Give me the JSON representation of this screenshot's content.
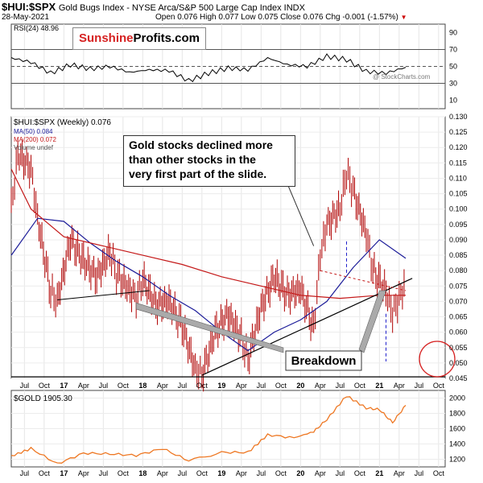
{
  "header": {
    "symbol": "$HUI:$SPX",
    "description": "Gold Bugs Index - NYSE Arca/S&P 500 Large Cap Index  INDX",
    "date": "28-May-2021",
    "ohlc": "Open 0.076  High 0.077  Low 0.075  Close 0.076  Chg -0.001 (-1.57%)",
    "ohlc_marker": "▼"
  },
  "logo": {
    "part1": "Sunshine",
    "part2": "Profits.com"
  },
  "watermark": "@ StockCharts.com",
  "annotations": {
    "note": "Gold stocks declined more\nthan other stocks in the\nvery first part of the slide.",
    "breakdown": "Breakdown"
  },
  "legend": {
    "rsi": "RSI(24) 48.96",
    "main_series": "$HUI:$SPX (Weekly) 0.076",
    "ma50": "MA(50) 0.084",
    "ma200": "MA(200) 0.072",
    "volume": "Volume undef",
    "gold": "$GOLD 1905.30"
  },
  "colors": {
    "candle": "#b00000",
    "ma50": "#1c1c99",
    "ma200": "#c41818",
    "gold": "#ee7722",
    "rsi": "#000000",
    "annotation_circle": "#d62222",
    "dashed": "#2222cc"
  },
  "chart_data": [
    {
      "type": "line",
      "title": "RSI(24)",
      "ylim": [
        0,
        100
      ],
      "yticks": [
        10,
        30,
        50,
        70,
        90
      ],
      "reference_lines": [
        30,
        50,
        70
      ],
      "x": [
        "2016-05",
        "2016-08",
        "2016-11",
        "2017-02",
        "2017-05",
        "2017-08",
        "2017-11",
        "2018-02",
        "2018-05",
        "2018-08",
        "2018-11",
        "2019-02",
        "2019-05",
        "2019-08",
        "2019-11",
        "2020-02",
        "2020-05",
        "2020-08",
        "2020-11",
        "2021-02",
        "2021-05"
      ],
      "values": [
        60,
        55,
        42,
        52,
        47,
        50,
        43,
        46,
        45,
        33,
        42,
        48,
        46,
        60,
        52,
        50,
        62,
        58,
        44,
        42,
        49
      ]
    },
    {
      "type": "line",
      "series_label": "$HUI:$SPX (Weekly)",
      "ylim": [
        0.045,
        0.13
      ],
      "yticks": [
        0.045,
        0.05,
        0.055,
        0.06,
        0.065,
        0.07,
        0.075,
        0.08,
        0.085,
        0.09,
        0.095,
        0.1,
        0.105,
        0.11,
        0.115,
        0.12,
        0.125,
        0.13
      ],
      "x_ticks": [
        "Jul",
        "Oct",
        "17",
        "Apr",
        "Jul",
        "Oct",
        "18",
        "Apr",
        "Jul",
        "Oct",
        "19",
        "Apr",
        "Jul",
        "Oct",
        "20",
        "Apr",
        "Jul",
        "Oct",
        "21",
        "Apr",
        "Jul",
        "Oct"
      ],
      "series": [
        {
          "name": "$HUI:$SPX",
          "x": [
            "2016-05",
            "2016-06",
            "2016-08",
            "2016-09",
            "2016-11",
            "2016-12",
            "2017-02",
            "2017-04",
            "2017-06",
            "2017-08",
            "2017-09",
            "2017-12",
            "2018-01",
            "2018-03",
            "2018-05",
            "2018-07",
            "2018-09",
            "2018-10",
            "2018-12",
            "2019-02",
            "2019-04",
            "2019-05",
            "2019-07",
            "2019-09",
            "2019-11",
            "2020-01",
            "2020-03",
            "2020-04",
            "2020-05",
            "2020-07",
            "2020-08",
            "2020-09",
            "2020-11",
            "2020-12",
            "2021-02",
            "2021-03",
            "2021-04",
            "2021-05"
          ],
          "values": [
            0.1,
            0.118,
            0.113,
            0.097,
            0.073,
            0.07,
            0.09,
            0.083,
            0.078,
            0.086,
            0.079,
            0.071,
            0.077,
            0.069,
            0.07,
            0.062,
            0.048,
            0.046,
            0.06,
            0.066,
            0.058,
            0.051,
            0.068,
            0.078,
            0.072,
            0.074,
            0.061,
            0.085,
            0.095,
            0.1,
            0.112,
            0.106,
            0.092,
            0.08,
            0.073,
            0.066,
            0.071,
            0.076
          ]
        },
        {
          "name": "MA(50)",
          "x": [
            "2016-05",
            "2016-09",
            "2017-01",
            "2017-05",
            "2017-09",
            "2018-01",
            "2018-05",
            "2018-09",
            "2019-01",
            "2019-05",
            "2019-09",
            "2020-01",
            "2020-05",
            "2020-09",
            "2021-01",
            "2021-05"
          ],
          "values": [
            0.085,
            0.097,
            0.096,
            0.089,
            0.083,
            0.078,
            0.072,
            0.067,
            0.06,
            0.054,
            0.06,
            0.064,
            0.07,
            0.081,
            0.09,
            0.084
          ]
        },
        {
          "name": "MA(200)",
          "x": [
            "2016-05",
            "2016-08",
            "2017-01",
            "2017-07",
            "2018-01",
            "2018-07",
            "2019-01",
            "2019-07",
            "2020-01",
            "2020-07",
            "2021-01",
            "2021-05"
          ],
          "values": [
            0.113,
            0.1,
            0.091,
            0.088,
            0.085,
            0.082,
            0.078,
            0.075,
            0.072,
            0.071,
            0.072,
            0.072
          ]
        }
      ]
    },
    {
      "type": "line",
      "series_label": "$GOLD",
      "ylim": [
        1100,
        2100
      ],
      "yticks": [
        1200,
        1400,
        1600,
        1800,
        2000
      ],
      "x": [
        "2016-05",
        "2016-08",
        "2016-12",
        "2017-04",
        "2017-08",
        "2017-12",
        "2018-04",
        "2018-08",
        "2019-01",
        "2019-05",
        "2019-08",
        "2019-12",
        "2020-03",
        "2020-05",
        "2020-08",
        "2020-11",
        "2021-01",
        "2021-03",
        "2021-05"
      ],
      "values": [
        1240,
        1340,
        1140,
        1280,
        1270,
        1250,
        1340,
        1180,
        1290,
        1290,
        1520,
        1480,
        1560,
        1720,
        2030,
        1870,
        1850,
        1680,
        1905
      ]
    }
  ]
}
